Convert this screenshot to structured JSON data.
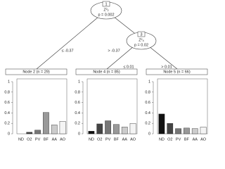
{
  "tree": {
    "nodes": [
      {
        "id": "1",
        "variable": "Z²₂",
        "p": "p = 0.002"
      },
      {
        "id": "3",
        "variable": "Z²₄",
        "p": "p = 0.02"
      }
    ],
    "edges": [
      "≤ -0.37",
      "> -0.37",
      "≤ 0.01",
      "> 0.01"
    ]
  },
  "chart_data": [
    {
      "type": "bar",
      "title": "Node 2 (n = 29)",
      "categories": [
        "ND",
        "O2",
        "PV",
        "BF",
        "AA",
        "AO"
      ],
      "values": [
        0,
        0.03,
        0.07,
        0.41,
        0.17,
        0.24
      ],
      "colors": [
        "#111111",
        "#444444",
        "#777777",
        "#999999",
        "#cccccc",
        "#f4f4f4"
      ],
      "ylim": [
        0,
        1
      ],
      "yticks": [
        0,
        0.2,
        0.4,
        0.6,
        0.8,
        1
      ]
    },
    {
      "type": "bar",
      "title": "Node 4 (n = 85)",
      "categories": [
        "ND",
        "O2",
        "PV",
        "BF",
        "AA",
        "AO"
      ],
      "values": [
        0.05,
        0.19,
        0.25,
        0.18,
        0.13,
        0.2
      ],
      "colors": [
        "#111111",
        "#444444",
        "#777777",
        "#999999",
        "#cccccc",
        "#f4f4f4"
      ],
      "ylim": [
        0,
        1
      ],
      "yticks": [
        0,
        0.2,
        0.4,
        0.6,
        0.8,
        1
      ]
    },
    {
      "type": "bar",
      "title": "Node 5 (n = 66)",
      "categories": [
        "ND",
        "O2",
        "PV",
        "BF",
        "AA",
        "AO"
      ],
      "values": [
        0.38,
        0.2,
        0.1,
        0.11,
        0.1,
        0.13
      ],
      "colors": [
        "#111111",
        "#444444",
        "#777777",
        "#999999",
        "#cccccc",
        "#f4f4f4"
      ],
      "ylim": [
        0,
        1
      ],
      "yticks": [
        0,
        0.2,
        0.4,
        0.6,
        0.8,
        1
      ]
    }
  ]
}
